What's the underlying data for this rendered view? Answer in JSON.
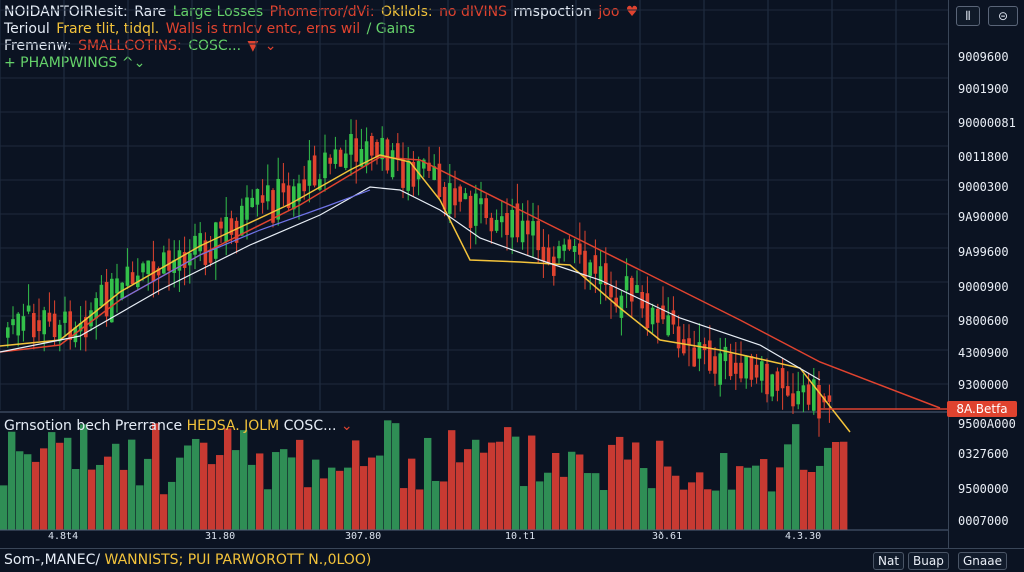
{
  "header": {
    "line1": [
      {
        "text": "NOIDANTOIRIesit:",
        "color": "#e5ecf6"
      },
      {
        "text": "Rare",
        "color": "#e5ecf6"
      },
      {
        "text": "Large Losses",
        "color": "#65d26a"
      },
      {
        "text": "Phomerror/dVi:",
        "color": "#e0432f"
      },
      {
        "text": "OkIlols:",
        "color": "#f3c33b"
      },
      {
        "text": "no dIVINS",
        "color": "#e0432f"
      },
      {
        "text": "rmspoction",
        "color": "#e5ecf6"
      },
      {
        "text": "joo",
        "color": "#e0432f"
      },
      {
        "text": "♥",
        "color": "#e0432f"
      }
    ],
    "line2": [
      {
        "text": "Terioul",
        "color": "#e5ecf6"
      },
      {
        "text": "Frare tlit, tidql.",
        "color": "#f3c33b"
      },
      {
        "text": "Walls is trnlcv entc, erns wil",
        "color": "#e0432f"
      },
      {
        "text": "/ Gains",
        "color": "#65d26a"
      }
    ],
    "line3": [
      {
        "text": "Fremenw:",
        "color": "#e5ecf6"
      },
      {
        "text": "SMALLCOTINS:",
        "color": "#e0432f"
      },
      {
        "text": "COSC...",
        "color": "#65d26a"
      },
      {
        "text": "▼",
        "color": "#e0432f"
      },
      {
        "text": "⌄",
        "color": "#e0432f"
      }
    ],
    "line4": [
      {
        "text": "+ PHAMPWINGS ^⌄",
        "color": "#65d26a"
      }
    ]
  },
  "price_axis_labels": [
    "9009600",
    "9001900",
    "90000081",
    "0011800",
    "9000300",
    "9A90000",
    "9A99600",
    "9000900",
    "9800600",
    "4300900",
    "9300000",
    "9500A000",
    "0327600",
    "9500000",
    "0007000"
  ],
  "price_tag": "8A.Betfa",
  "x_axis_labels": [
    "4.8t4",
    "31.80",
    "307.80",
    "10.t1",
    "3ð.61",
    "4.3.30"
  ],
  "subpanel_title": [
    {
      "text": "Grnsotion bech Prerrance",
      "color": "#e5ecf6"
    },
    {
      "text": "HEDSA. JOLM",
      "color": "#f3c33b"
    },
    {
      "text": "COSC...",
      "color": "#e5ecf6"
    },
    {
      "text": "⌄",
      "color": "#e0432f"
    }
  ],
  "bottom": {
    "left_text": [
      {
        "text": "Som-,MANEC/",
        "color": "#e5ecf6"
      },
      {
        "text": "WANNISTS; PUI PARWOROTT",
        "color": "#f3c33b"
      },
      {
        "text": "N.,0LOO)",
        "color": "#f3c33b"
      }
    ],
    "buttons": [
      "Nat",
      "Buap",
      "Gnaae"
    ]
  },
  "top_icons": [
    "panel-icon",
    "view-icon"
  ],
  "chart_data": {
    "type": "candlestick",
    "series": [
      {
        "name": "Price",
        "values": []
      }
    ]
  }
}
